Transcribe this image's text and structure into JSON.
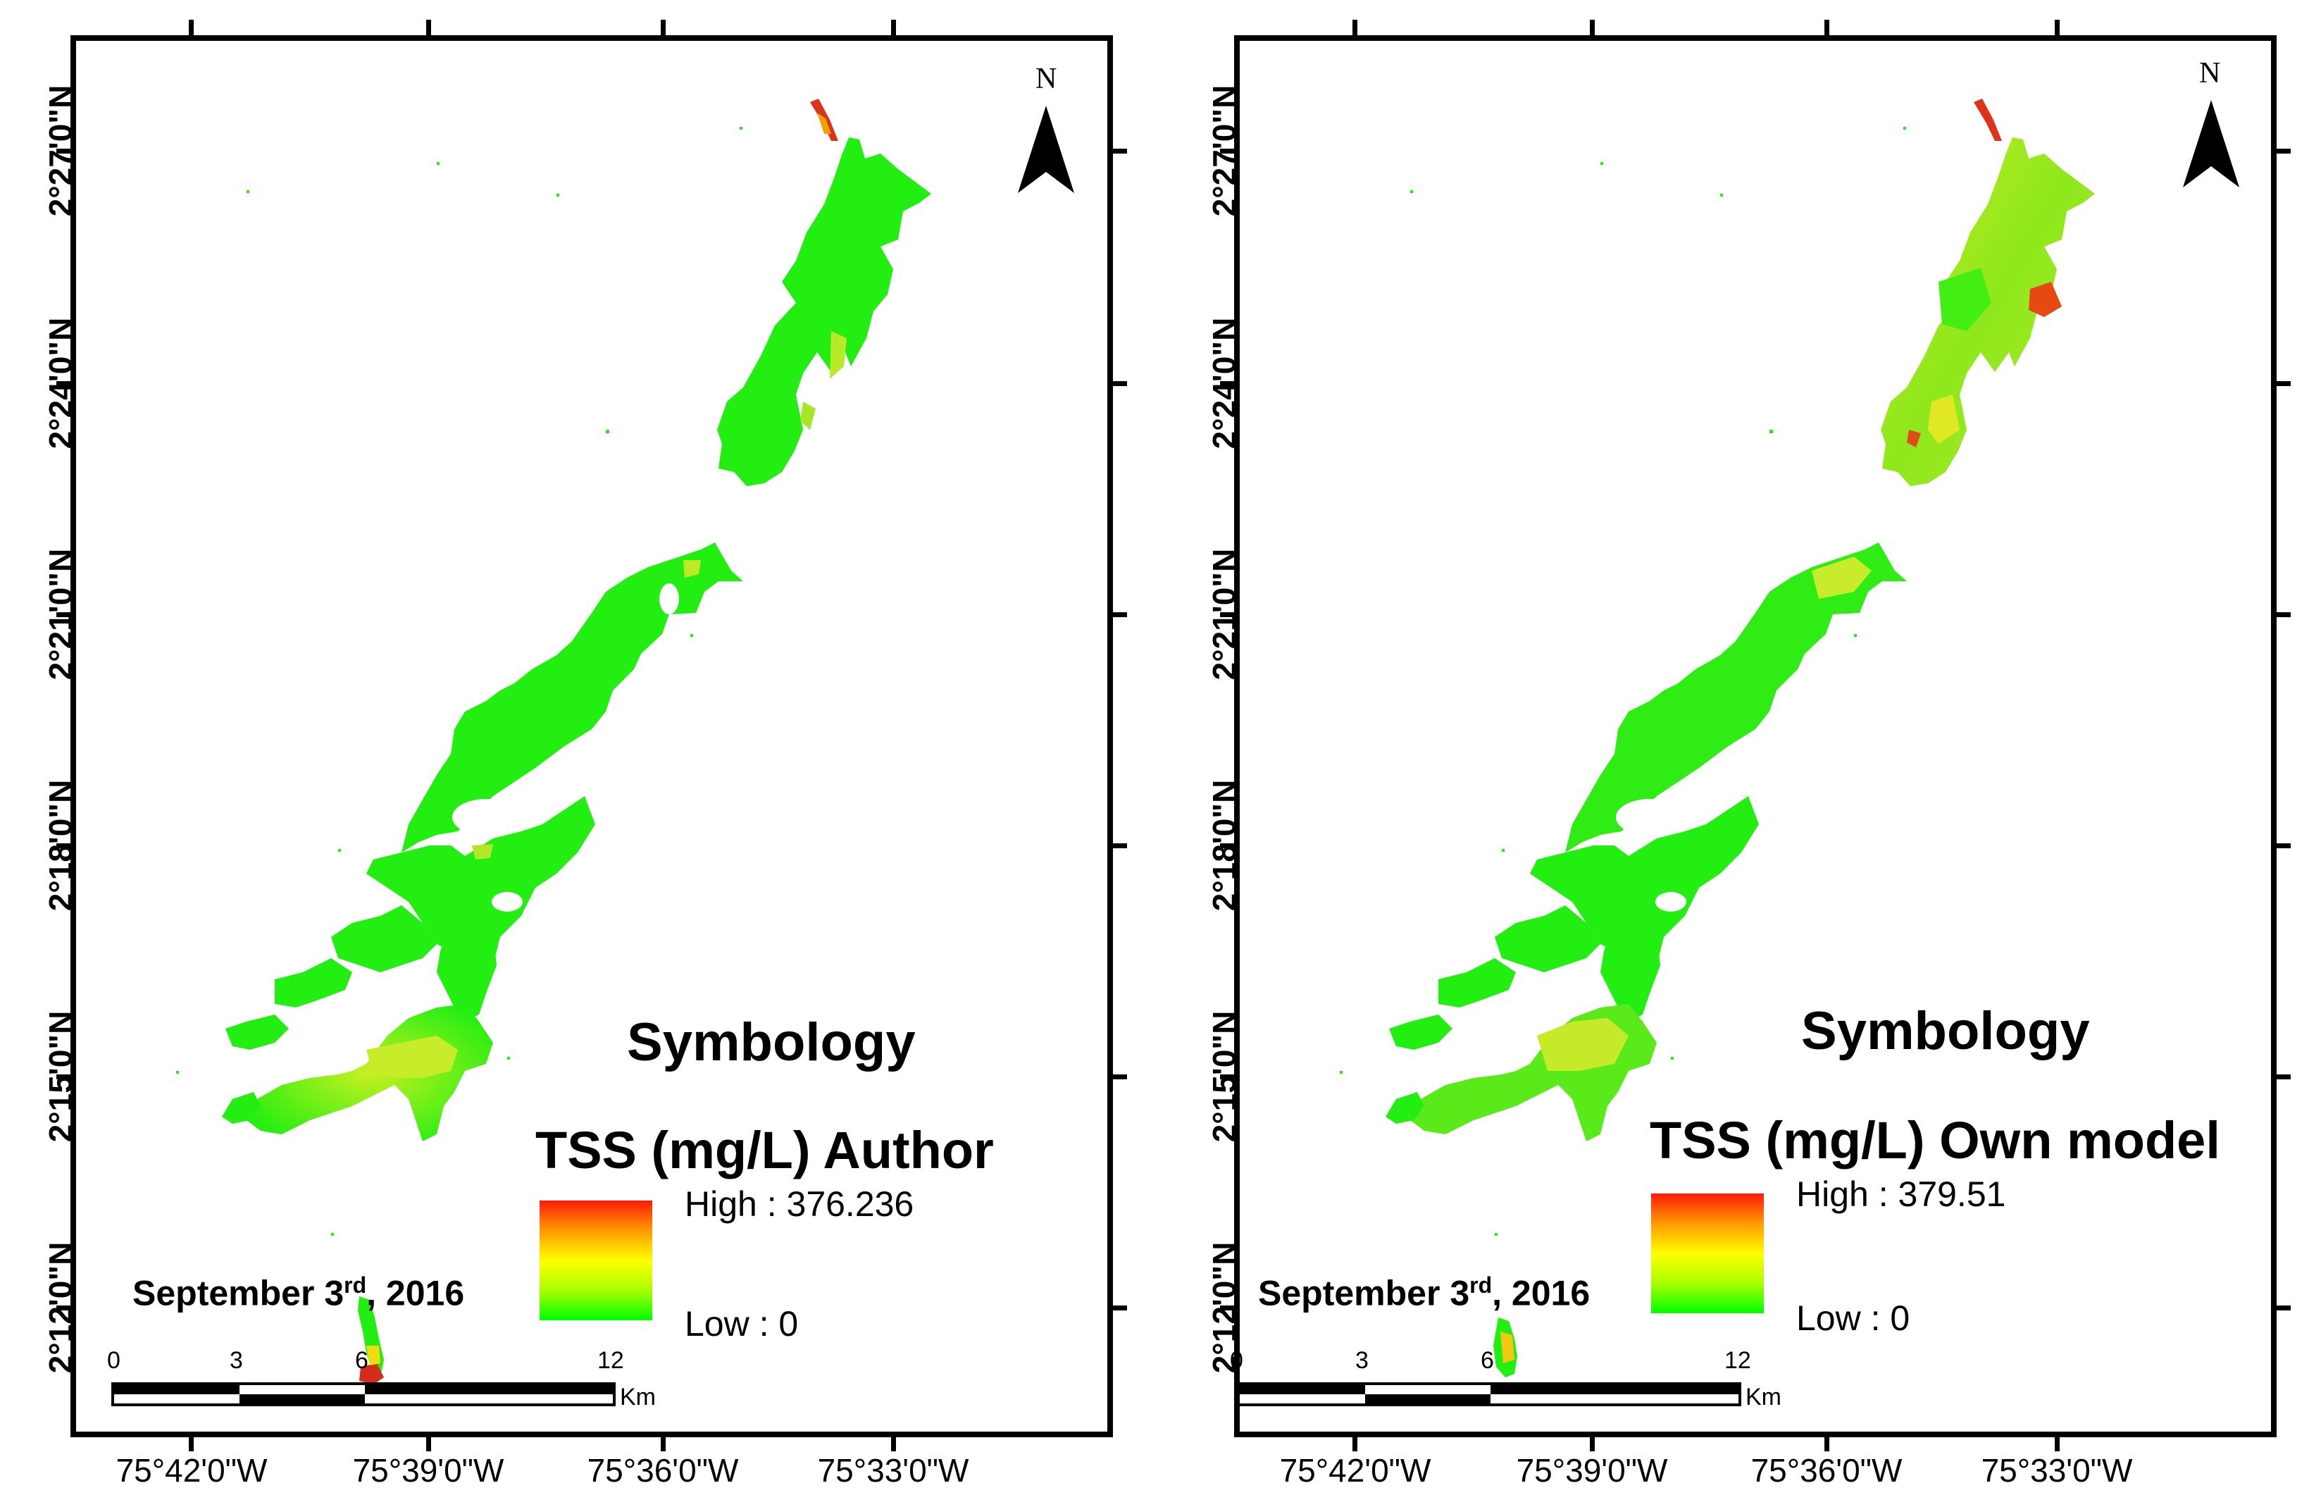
{
  "map_panels": [
    {
      "legend": {
        "heading": "Symbology",
        "variable_title": "TSS (mg/L) Author",
        "high_label": "High : 376.236",
        "low_label": "Low : 0",
        "high_value": 376.236,
        "low_value": 0
      },
      "date": {
        "prefix": "September 3",
        "ordinal": "rd",
        "suffix": ", 2016"
      },
      "scale_bar": {
        "labels": [
          "0",
          "3",
          "6",
          "12"
        ],
        "unit": "Km"
      },
      "north_arrow": {
        "label": "N"
      }
    },
    {
      "legend": {
        "heading": "Symbology",
        "variable_title": "TSS (mg/L) Own model",
        "high_label": "High : 379.51",
        "low_label": "Low : 0",
        "high_value": 379.51,
        "low_value": 0
      },
      "date": {
        "prefix": "September 3",
        "ordinal": "rd",
        "suffix": ", 2016"
      },
      "scale_bar": {
        "labels": [
          "0",
          "3",
          "6",
          "12"
        ],
        "unit": "Km"
      },
      "north_arrow": {
        "label": "N"
      }
    }
  ],
  "axes": {
    "latitude_labels": [
      "2°27'0\"N",
      "2°24'0\"N",
      "2°21'0\"N",
      "2°18'0\"N",
      "2°15'0\"N",
      "2°12'0\"N"
    ],
    "longitude_labels": [
      "75°42'0\"W",
      "75°39'0\"W",
      "75°36'0\"W",
      "75°33'0\"W"
    ]
  },
  "colors": {
    "low": "#00ff00",
    "mid": "#ffff00",
    "high": "#ff1a0a",
    "frame": "#000000"
  }
}
